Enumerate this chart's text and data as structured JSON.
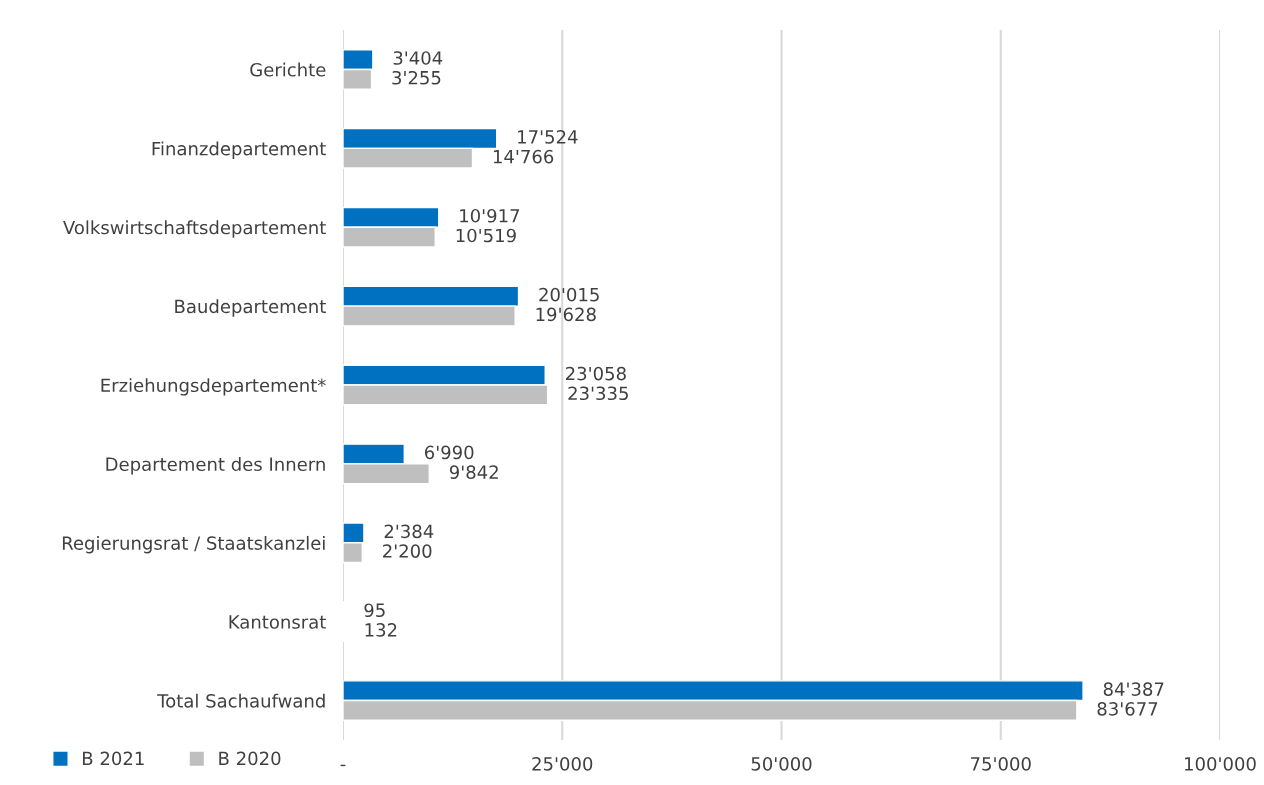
{
  "chart_data": {
    "type": "bar",
    "orientation": "horizontal",
    "categories": [
      "Gerichte",
      "Finanzdepartement",
      "Volkswirtschaftsdepartement",
      "Baudepartement",
      "Erziehungsdepartement*",
      "Departement des Innern",
      "Regierungsrat / Staatskanzlei",
      "Kantonsrat",
      "Total Sachaufwand"
    ],
    "series": [
      {
        "name": "B 2021",
        "color": "#0070c0",
        "values": [
          3404,
          17524,
          10917,
          20015,
          23058,
          6990,
          2384,
          95,
          84387
        ],
        "value_labels": [
          "3'404",
          "17'524",
          "10'917",
          "20'015",
          "23'058",
          "6'990",
          "2'384",
          "95",
          "84'387"
        ]
      },
      {
        "name": "B 2020",
        "color": "#bfbfbf",
        "values": [
          3255,
          14766,
          10519,
          19628,
          23335,
          9842,
          2200,
          132,
          83677
        ],
        "value_labels": [
          "3'255",
          "14'766",
          "10'519",
          "19'628",
          "23'335",
          "9'842",
          "2'200",
          "132",
          "83'677"
        ]
      }
    ],
    "xlim": [
      0,
      100000
    ],
    "xticks": [
      {
        "value": 0,
        "label": "-"
      },
      {
        "value": 25000,
        "label": "25'000"
      },
      {
        "value": 50000,
        "label": "50'000"
      },
      {
        "value": 75000,
        "label": "75'000"
      },
      {
        "value": 100000,
        "label": "100'000"
      }
    ],
    "grid": "x",
    "legend": "bottom left"
  }
}
